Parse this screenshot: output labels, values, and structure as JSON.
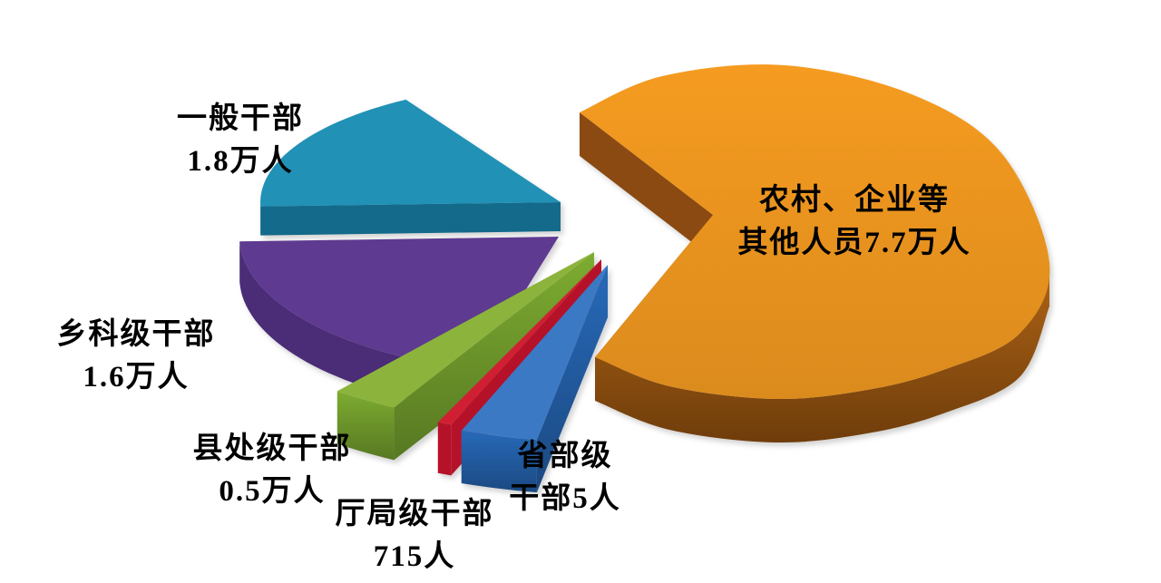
{
  "chart_data": {
    "type": "pie",
    "style": "3d-exploded-pie",
    "title": "",
    "unit": "人",
    "legend": "none",
    "background": "#FFFFFF",
    "label_text_color": "#000000",
    "slices": [
      {
        "name": "一般干部",
        "value": 18000,
        "value_label": "1.8万人",
        "label_line1": "一般干部",
        "label_line2": "1.8万人",
        "color_top": "#2191B6",
        "color_side": "#136A8A"
      },
      {
        "name": "乡科级干部",
        "value": 16000,
        "value_label": "1.6万人",
        "label_line1": "乡科级干部",
        "label_line2": "1.6万人",
        "color_top": "#5E3B90",
        "color_side": "#4A2C77"
      },
      {
        "name": "县处级干部",
        "value": 5000,
        "value_label": "0.5万人",
        "label_line1": "县处级干部",
        "label_line2": "0.5万人",
        "color_top": "#8CB43C",
        "color_side": "#76A22E"
      },
      {
        "name": "厅局级干部",
        "value": 715,
        "value_label": "715人",
        "label_line1": "厅局级干部",
        "label_line2": "715人",
        "color_top": "#D01F33",
        "color_side": "#B5122A"
      },
      {
        "name": "省部级干部",
        "value": 5,
        "value_label": "5人",
        "label_line1": "省部级",
        "label_line2": "干部5人",
        "color_top": "#3B79C4",
        "color_side": "#2563AE"
      },
      {
        "name": "农村、企业等其他人员",
        "value": 77000,
        "value_label": "7.7万人",
        "label_line1": "农村、企业等",
        "label_line2": "其他人员7.7万人",
        "color_top": "#EC951F",
        "color_side": "#9C5512"
      }
    ]
  }
}
